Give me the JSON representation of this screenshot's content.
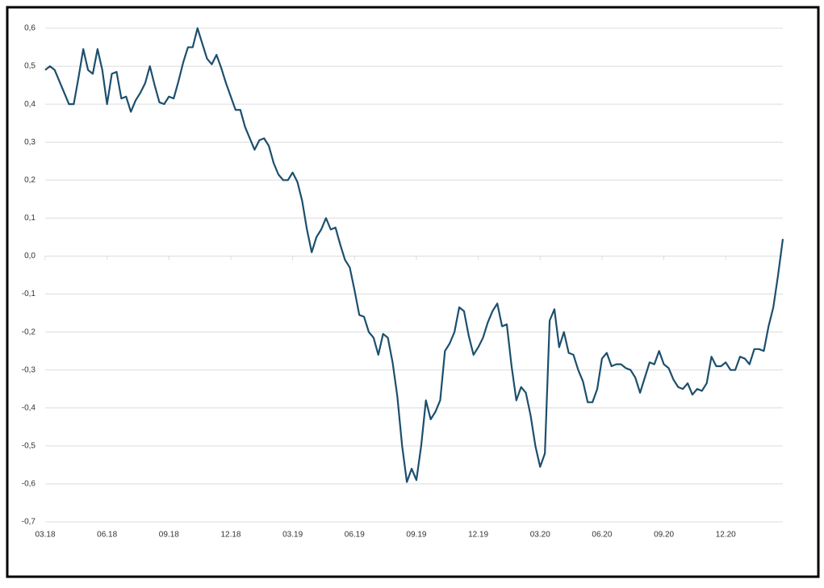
{
  "chart_data": {
    "type": "line",
    "categories": [
      "03.18",
      null,
      null,
      null,
      null,
      null,
      null,
      null,
      null,
      null,
      null,
      null,
      null,
      "06.18",
      null,
      null,
      null,
      null,
      null,
      null,
      null,
      null,
      null,
      null,
      null,
      null,
      "09.18",
      null,
      null,
      null,
      null,
      null,
      null,
      null,
      null,
      null,
      null,
      null,
      null,
      "12.18",
      null,
      null,
      null,
      null,
      null,
      null,
      null,
      null,
      null,
      null,
      null,
      null,
      "03.19",
      null,
      null,
      null,
      null,
      null,
      null,
      null,
      null,
      null,
      null,
      null,
      null,
      "06.19",
      null,
      null,
      null,
      null,
      null,
      null,
      null,
      null,
      null,
      null,
      null,
      null,
      "09.19",
      null,
      null,
      null,
      null,
      null,
      null,
      null,
      null,
      null,
      null,
      null,
      null,
      "12.19",
      null,
      null,
      null,
      null,
      null,
      null,
      null,
      null,
      null,
      null,
      null,
      null,
      "03.20",
      null,
      null,
      null,
      null,
      null,
      null,
      null,
      null,
      null,
      null,
      null,
      null,
      "06.20",
      null,
      null,
      null,
      null,
      null,
      null,
      null,
      null,
      null,
      null,
      null,
      null,
      "09.20",
      null,
      null,
      null,
      null,
      null,
      null,
      null,
      null,
      null,
      null,
      null,
      null,
      "12.20",
      null,
      null,
      null,
      null,
      null,
      null,
      null,
      null,
      null,
      null,
      null,
      null
    ],
    "values": [
      0.49,
      0.5,
      0.49,
      0.46,
      0.43,
      0.4,
      0.4,
      0.47,
      0.545,
      0.49,
      0.48,
      0.545,
      0.49,
      0.4,
      0.48,
      0.485,
      0.415,
      0.42,
      0.38,
      0.41,
      0.43,
      0.455,
      0.5,
      0.45,
      0.405,
      0.4,
      0.42,
      0.415,
      0.46,
      0.51,
      0.55,
      0.55,
      0.6,
      0.56,
      0.52,
      0.505,
      0.53,
      0.495,
      0.455,
      0.42,
      0.385,
      0.385,
      0.34,
      0.31,
      0.28,
      0.305,
      0.31,
      0.29,
      0.245,
      0.215,
      0.2,
      0.2,
      0.22,
      0.195,
      0.145,
      0.07,
      0.01,
      0.05,
      0.07,
      0.1,
      0.07,
      0.075,
      0.03,
      -0.01,
      -0.03,
      -0.09,
      -0.155,
      -0.16,
      -0.2,
      -0.215,
      -0.26,
      -0.205,
      -0.215,
      -0.28,
      -0.37,
      -0.5,
      -0.595,
      -0.56,
      -0.59,
      -0.5,
      -0.38,
      -0.43,
      -0.41,
      -0.38,
      -0.25,
      -0.23,
      -0.2,
      -0.135,
      -0.145,
      -0.21,
      -0.26,
      -0.24,
      -0.215,
      -0.175,
      -0.145,
      -0.125,
      -0.185,
      -0.18,
      -0.29,
      -0.38,
      -0.345,
      -0.36,
      -0.42,
      -0.5,
      -0.555,
      -0.52,
      -0.17,
      -0.14,
      -0.24,
      -0.2,
      -0.255,
      -0.26,
      -0.3,
      -0.33,
      -0.385,
      -0.385,
      -0.35,
      -0.27,
      -0.255,
      -0.29,
      -0.285,
      -0.285,
      -0.295,
      -0.3,
      -0.32,
      -0.36,
      -0.32,
      -0.28,
      -0.285,
      -0.25,
      -0.285,
      -0.295,
      -0.325,
      -0.345,
      -0.35,
      -0.335,
      -0.365,
      -0.35,
      -0.355,
      -0.335,
      -0.265,
      -0.29,
      -0.29,
      -0.28,
      -0.3,
      -0.3,
      -0.265,
      -0.27,
      -0.285,
      -0.245,
      -0.245,
      -0.25,
      -0.185,
      -0.135,
      -0.05,
      0.045
    ],
    "color": "#1c4f6e",
    "ylim": [
      -0.7,
      0.6
    ],
    "yticks": [
      {
        "value": 0.6,
        "label": "0,6"
      },
      {
        "value": 0.5,
        "label": "0,5"
      },
      {
        "value": 0.4,
        "label": "0,4"
      },
      {
        "value": 0.3,
        "label": "0,3"
      },
      {
        "value": 0.2,
        "label": "0,2"
      },
      {
        "value": 0.1,
        "label": "0,1"
      },
      {
        "value": 0,
        "label": "0,0"
      },
      {
        "value": -0.1,
        "label": "-0,1"
      },
      {
        "value": -0.2,
        "label": "-0,2"
      },
      {
        "value": -0.3,
        "label": "-0,3"
      },
      {
        "value": -0.4,
        "label": "-0,4"
      },
      {
        "value": -0.5,
        "label": "-0,5"
      },
      {
        "value": -0.6,
        "label": "-0,6"
      },
      {
        "value": -0.7,
        "label": "-0,7"
      }
    ],
    "grid": true
  }
}
